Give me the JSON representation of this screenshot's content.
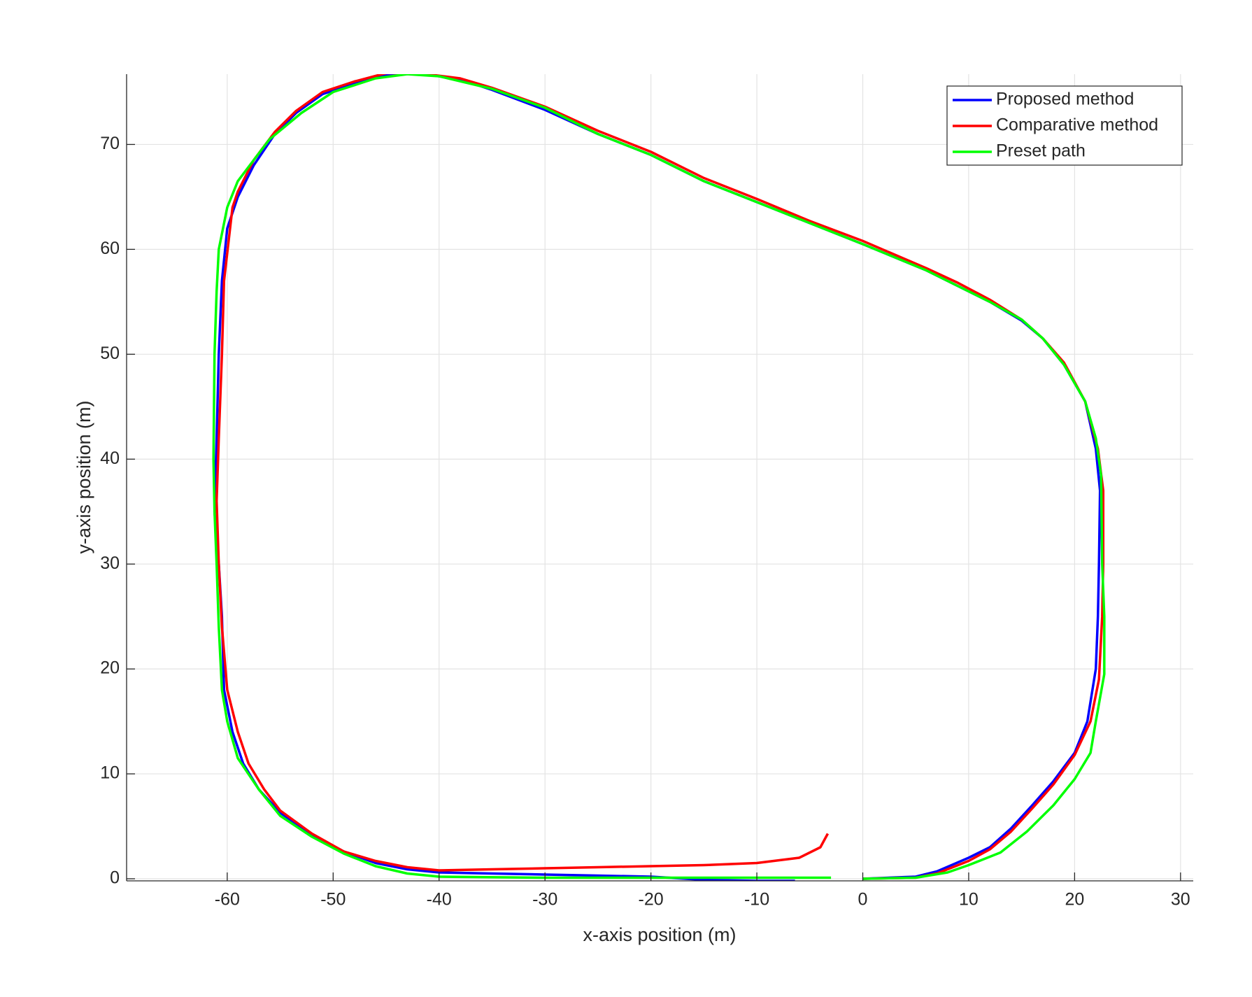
{
  "chart_data": {
    "type": "line",
    "xlabel": "x-axis position (m)",
    "ylabel": "y-axis position (m)",
    "xlim": [
      -69.5,
      31.2
    ],
    "ylim": [
      -0.2,
      76.7
    ],
    "xticks": [
      -60,
      -50,
      -40,
      -30,
      -20,
      -10,
      0,
      10,
      20,
      30
    ],
    "yticks": [
      0,
      10,
      20,
      30,
      40,
      50,
      60,
      70
    ],
    "grid": true,
    "legend": "upper right",
    "series": [
      {
        "name": "Proposed method",
        "color": "#0000ff",
        "x": [
          0,
          5,
          7,
          10,
          12,
          14,
          16,
          18,
          20,
          21.2,
          22,
          22.2,
          22.3,
          22.4,
          22,
          21,
          19,
          17,
          15,
          12,
          9,
          6,
          0,
          -5,
          -10,
          -15,
          -20,
          -25,
          -30,
          -35,
          -38,
          -42,
          -45,
          -48,
          -51,
          -53.5,
          -55.5,
          -57.5,
          -59,
          -60,
          -60.5,
          -60.8,
          -61,
          -61.2,
          -60.8,
          -60.5,
          -60.3,
          -59.5,
          -58.5,
          -57,
          -55,
          -52,
          -49,
          -46,
          -43,
          -40,
          -35,
          -30,
          -25,
          -20,
          -15,
          -10,
          -6.4
        ],
        "values": [
          0,
          0.2,
          0.7,
          2,
          3,
          4.8,
          7,
          9.3,
          12,
          15,
          20,
          25,
          30,
          37,
          41,
          45.5,
          49,
          51.5,
          53.2,
          55,
          56.5,
          58,
          60.5,
          62.5,
          64.5,
          66.5,
          69,
          71,
          73.3,
          75.2,
          76.2,
          76.8,
          76.6,
          75.8,
          74.8,
          73,
          71,
          68,
          65,
          62,
          57,
          50,
          42,
          35,
          30,
          25,
          18,
          14,
          11,
          8.5,
          6.3,
          4.2,
          2.6,
          1.5,
          0.9,
          0.6,
          0.5,
          0.4,
          0.3,
          0.2,
          -0.1,
          -0.2,
          -0.2
        ]
      },
      {
        "name": "Comparative method",
        "color": "#ff0000",
        "x": [
          0,
          5,
          7,
          10,
          12,
          14,
          16,
          18,
          20,
          21.5,
          22.3,
          22.6,
          22.7,
          22.7,
          22.2,
          21,
          19,
          17,
          15,
          12,
          9,
          6,
          0,
          -5,
          -10,
          -15,
          -20,
          -25,
          -30,
          -35,
          -38,
          -42,
          -45,
          -48,
          -51,
          -53.5,
          -55.5,
          -57.5,
          -59,
          -59.5,
          -60.3,
          -60.5,
          -60.8,
          -61,
          -60.8,
          -60.5,
          -60,
          -59,
          -58,
          -56.5,
          -55,
          -52,
          -49,
          -46,
          -43,
          -40,
          -35,
          -30,
          -25,
          -20,
          -15,
          -10,
          -6,
          -4,
          -3.3
        ],
        "values": [
          0,
          0.1,
          0.5,
          1.7,
          2.8,
          4.5,
          6.7,
          9,
          11.8,
          15,
          19,
          25,
          30,
          37,
          41,
          45.5,
          49.2,
          51.5,
          53.3,
          55.2,
          56.8,
          58.2,
          60.8,
          62.7,
          64.8,
          66.8,
          69.3,
          71.3,
          73.6,
          75.4,
          76.3,
          76.8,
          76.8,
          76,
          75,
          73.2,
          71.2,
          68.5,
          65.5,
          64,
          57,
          50,
          42,
          36,
          30,
          24,
          18,
          14,
          11,
          8.5,
          6.5,
          4.3,
          2.6,
          1.7,
          1.1,
          0.8,
          0.9,
          1,
          1.1,
          1.2,
          1.3,
          1.5,
          2,
          3,
          4.3
        ]
      },
      {
        "name": "Preset path",
        "color": "#00ff00",
        "x": [
          0,
          5,
          8,
          10,
          13,
          15.5,
          18,
          20,
          21.5,
          22,
          22.8,
          22.8,
          22.6,
          22.5,
          22,
          21,
          19,
          17,
          15,
          12,
          9,
          6,
          0,
          -5,
          -10,
          -15,
          -20,
          -25,
          -30,
          -35,
          -40,
          -43,
          -46,
          -50,
          -53,
          -56,
          -57.5,
          -59,
          -60,
          -60.8,
          -61,
          -61.2,
          -61.3,
          -61.2,
          -61,
          -60.8,
          -60.5,
          -60,
          -59,
          -57,
          -55,
          -52,
          -49,
          -46,
          -43,
          -40,
          -30,
          -20,
          -10,
          -3
        ],
        "values": [
          0,
          0.1,
          0.6,
          1.3,
          2.5,
          4.5,
          7,
          9.5,
          12,
          15,
          19.5,
          25,
          30,
          38.5,
          42,
          45.5,
          49,
          51.5,
          53.3,
          55,
          56.5,
          58,
          60.5,
          62.5,
          64.5,
          66.5,
          69,
          71,
          73.5,
          75.3,
          76.5,
          76.7,
          76.3,
          75,
          73,
          70.5,
          68.5,
          66.5,
          64,
          60,
          56,
          50,
          40,
          35,
          30,
          24,
          18,
          15,
          11.5,
          8.5,
          6,
          4,
          2.4,
          1.2,
          0.5,
          0.2,
          0.1,
          0.1,
          0.1,
          0.1
        ]
      }
    ]
  }
}
